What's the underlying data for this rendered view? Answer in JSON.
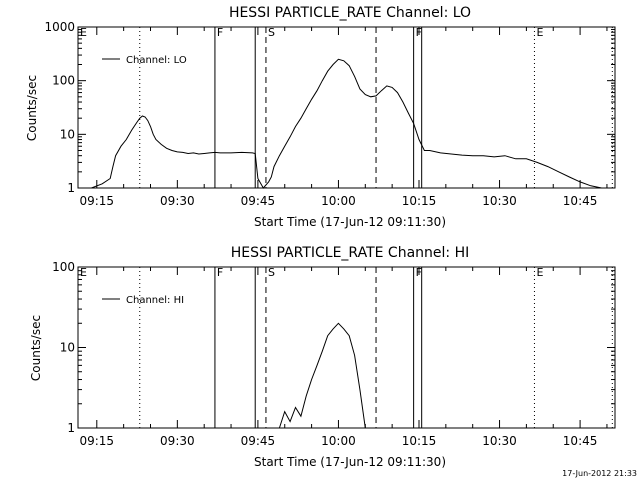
{
  "chart_data": [
    {
      "type": "line",
      "title": "HESSI PARTICLE_RATE Channel: LO",
      "xlabel": "Start Time (17-Jun-12 09:11:30)",
      "ylabel": "Counts/sec",
      "yscale": "log",
      "ylim": [
        1,
        1000
      ],
      "xlim": [
        "09:11:30",
        "10:51:30"
      ],
      "x_ticks": [
        "09:15",
        "09:30",
        "09:45",
        "10:00",
        "10:15",
        "10:30",
        "10:45"
      ],
      "y_ticks": [
        "1",
        "10",
        "100",
        "1000"
      ],
      "legend": {
        "label": "Channel: LO",
        "position": "top-left"
      },
      "marker_lines": [
        {
          "time": "09:11:30",
          "style": "dotted",
          "flag": "E"
        },
        {
          "time": "09:23:00",
          "style": "dotted",
          "flag": ""
        },
        {
          "time": "09:37:00",
          "style": "solid",
          "flag": "F"
        },
        {
          "time": "09:44:30",
          "style": "solid",
          "flag": ""
        },
        {
          "time": "09:46:30",
          "style": "dashed",
          "flag": "S"
        },
        {
          "time": "10:07:00",
          "style": "dashed",
          "flag": ""
        },
        {
          "time": "10:14:00",
          "style": "solid",
          "flag": "F"
        },
        {
          "time": "10:15:30",
          "style": "solid",
          "flag": ""
        },
        {
          "time": "10:36:30",
          "style": "dotted",
          "flag": "E"
        },
        {
          "time": "10:51:00",
          "style": "dotted",
          "flag": ""
        }
      ],
      "series": [
        {
          "name": "Channel: LO",
          "x": [
            "09:12:00",
            "09:14:00",
            "09:16:00",
            "09:17:30",
            "09:18:00",
            "09:18:30",
            "09:19:30",
            "09:20:30",
            "09:21:30",
            "09:22:30",
            "09:23:00",
            "09:23:30",
            "09:24:00",
            "09:24:30",
            "09:25:00",
            "09:25:30",
            "09:26:00",
            "09:27:00",
            "09:28:00",
            "09:29:00",
            "09:30:00",
            "09:31:00",
            "09:32:00",
            "09:33:00",
            "09:34:00",
            "09:35:00",
            "09:36:00",
            "09:37:00",
            "09:38:00",
            "09:40:00",
            "09:42:00",
            "09:44:00",
            "09:44:30",
            "09:45:00",
            "09:46:00",
            "09:47:00",
            "09:47:30",
            "09:48:00",
            "09:49:00",
            "09:50:00",
            "09:51:00",
            "09:52:00",
            "09:53:00",
            "09:54:00",
            "09:55:00",
            "09:56:00",
            "09:57:00",
            "09:58:00",
            "09:59:00",
            "10:00:00",
            "10:01:00",
            "10:02:00",
            "10:03:00",
            "10:04:00",
            "10:05:00",
            "10:06:00",
            "10:07:00",
            "10:08:00",
            "10:09:00",
            "10:10:00",
            "10:11:00",
            "10:12:00",
            "10:13:00",
            "10:14:00",
            "10:15:00",
            "10:16:00",
            "10:17:00",
            "10:19:00",
            "10:21:00",
            "10:23:00",
            "10:25:00",
            "10:27:00",
            "10:29:00",
            "10:31:00",
            "10:33:00",
            "10:35:00",
            "10:37:00",
            "10:39:00",
            "10:41:00",
            "10:43:00",
            "10:45:00",
            "10:47:00",
            "10:49:00",
            "10:51:00"
          ],
          "y": [
            1,
            1,
            1.2,
            1.5,
            2.5,
            4,
            6,
            8,
            12,
            17,
            20,
            22,
            21,
            18,
            14,
            10,
            8,
            6.5,
            5.5,
            5,
            4.7,
            4.6,
            4.4,
            4.5,
            4.3,
            4.4,
            4.5,
            4.6,
            4.5,
            4.5,
            4.6,
            4.5,
            4.4,
            1.5,
            1,
            1.3,
            1.6,
            2.5,
            4,
            6,
            9,
            14,
            20,
            30,
            45,
            65,
            100,
            150,
            200,
            250,
            235,
            190,
            120,
            70,
            55,
            50,
            52,
            65,
            80,
            75,
            60,
            40,
            25,
            16,
            8,
            5,
            5,
            4.5,
            4.3,
            4.1,
            4,
            4,
            3.8,
            4,
            3.5,
            3.5,
            3,
            2.5,
            2,
            1.6,
            1.3,
            1.1,
            1,
            1
          ]
        }
      ]
    },
    {
      "type": "line",
      "title": "HESSI PARTICLE_RATE Channel: HI",
      "xlabel": "Start Time (17-Jun-12 09:11:30)",
      "ylabel": "Counts/sec",
      "yscale": "log",
      "ylim": [
        1,
        100
      ],
      "xlim": [
        "09:11:30",
        "10:51:30"
      ],
      "x_ticks": [
        "09:15",
        "09:30",
        "09:45",
        "10:00",
        "10:15",
        "10:30",
        "10:45"
      ],
      "y_ticks": [
        "1",
        "10",
        "100"
      ],
      "legend": {
        "label": "Channel: HI",
        "position": "top-left"
      },
      "marker_lines": [
        {
          "time": "09:11:30",
          "style": "dotted",
          "flag": "E"
        },
        {
          "time": "09:23:00",
          "style": "dotted",
          "flag": ""
        },
        {
          "time": "09:37:00",
          "style": "solid",
          "flag": "F"
        },
        {
          "time": "09:44:30",
          "style": "solid",
          "flag": ""
        },
        {
          "time": "09:46:30",
          "style": "dashed",
          "flag": "S"
        },
        {
          "time": "10:07:00",
          "style": "dashed",
          "flag": ""
        },
        {
          "time": "10:14:00",
          "style": "solid",
          "flag": "F"
        },
        {
          "time": "10:15:30",
          "style": "solid",
          "flag": ""
        },
        {
          "time": "10:36:30",
          "style": "dotted",
          "flag": "E"
        },
        {
          "time": "10:51:00",
          "style": "dotted",
          "flag": ""
        }
      ],
      "series": [
        {
          "name": "Channel: HI",
          "x": [
            "09:49:00",
            "09:50:00",
            "09:51:00",
            "09:52:00",
            "09:53:00",
            "09:54:00",
            "09:55:00",
            "09:56:00",
            "09:57:00",
            "09:58:00",
            "09:59:00",
            "10:00:00",
            "10:01:00",
            "10:02:00",
            "10:03:00",
            "10:04:00",
            "10:05:00"
          ],
          "y": [
            1,
            1.6,
            1.2,
            1.8,
            1.4,
            2.5,
            4,
            6,
            9,
            14,
            17,
            20,
            17,
            14,
            8,
            3,
            1
          ]
        }
      ]
    }
  ],
  "footer": {
    "stamp": "17-Jun-2012 21:33"
  }
}
